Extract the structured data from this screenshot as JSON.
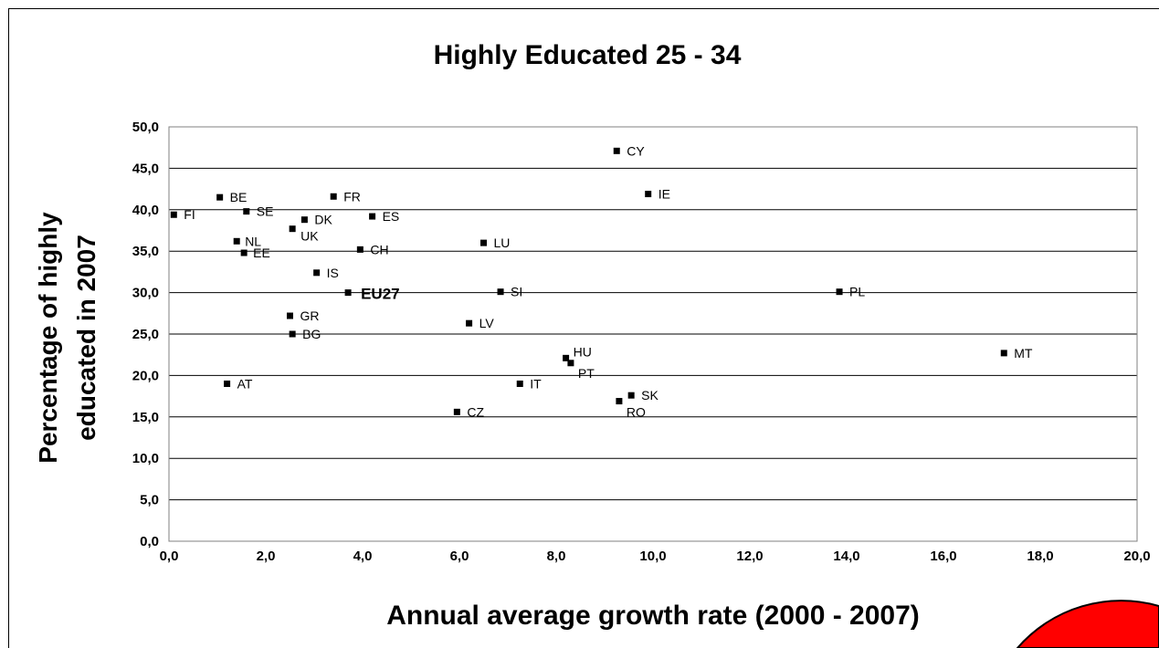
{
  "chart_data": {
    "type": "scatter",
    "title": "Highly Educated 25 - 34",
    "xlabel": "Annual average growth rate (2000 - 2007)",
    "ylabel_lines": [
      "Percentage of highly",
      "educated in 2007"
    ],
    "xlim": [
      0,
      20
    ],
    "ylim": [
      0,
      50
    ],
    "x_ticks": [
      "0,0",
      "2,0",
      "4,0",
      "6,0",
      "8,0",
      "10,0",
      "12,0",
      "14,0",
      "16,0",
      "18,0",
      "20,0"
    ],
    "y_ticks": [
      "0,0",
      "5,0",
      "10,0",
      "15,0",
      "20,0",
      "25,0",
      "30,0",
      "35,0",
      "40,0",
      "45,0",
      "50,0"
    ],
    "grid": "horizontal",
    "marker": "square",
    "marker_color": "#000000",
    "points": [
      {
        "label": "FI",
        "x": 0.1,
        "y": 39.4
      },
      {
        "label": "BE",
        "x": 1.05,
        "y": 41.5
      },
      {
        "label": "SE",
        "x": 1.6,
        "y": 39.8
      },
      {
        "label": "NL",
        "x": 1.4,
        "y": 36.2
      },
      {
        "label": "EE",
        "x": 1.55,
        "y": 34.8
      },
      {
        "label": "AT",
        "x": 1.2,
        "y": 19.0
      },
      {
        "label": "UK",
        "x": 2.55,
        "y": 37.7
      },
      {
        "label": "DK",
        "x": 2.8,
        "y": 38.8
      },
      {
        "label": "GR",
        "x": 2.5,
        "y": 27.2
      },
      {
        "label": "BG",
        "x": 2.55,
        "y": 25.0
      },
      {
        "label": "IS",
        "x": 3.05,
        "y": 32.4
      },
      {
        "label": "FR",
        "x": 3.4,
        "y": 41.6
      },
      {
        "label": "EU27",
        "x": 3.7,
        "y": 30.0
      },
      {
        "label": "CH",
        "x": 3.95,
        "y": 35.2
      },
      {
        "label": "ES",
        "x": 4.2,
        "y": 39.2
      },
      {
        "label": "CZ",
        "x": 5.95,
        "y": 15.6
      },
      {
        "label": "LV",
        "x": 6.2,
        "y": 26.3
      },
      {
        "label": "LU",
        "x": 6.5,
        "y": 36.0
      },
      {
        "label": "SI",
        "x": 6.85,
        "y": 30.1
      },
      {
        "label": "IT",
        "x": 7.25,
        "y": 19.0
      },
      {
        "label": "HU",
        "x": 8.2,
        "y": 22.1
      },
      {
        "label": "PT",
        "x": 8.3,
        "y": 21.5
      },
      {
        "label": "CY",
        "x": 9.25,
        "y": 47.1
      },
      {
        "label": "RO",
        "x": 9.3,
        "y": 16.9
      },
      {
        "label": "SK",
        "x": 9.55,
        "y": 17.6
      },
      {
        "label": "IE",
        "x": 9.9,
        "y": 41.9
      },
      {
        "label": "PL",
        "x": 13.85,
        "y": 30.1
      },
      {
        "label": "MT",
        "x": 17.25,
        "y": 22.7
      }
    ]
  },
  "decoration": {
    "corner_shape_color": "#ff0000",
    "corner_shape_outline": "#000000"
  }
}
